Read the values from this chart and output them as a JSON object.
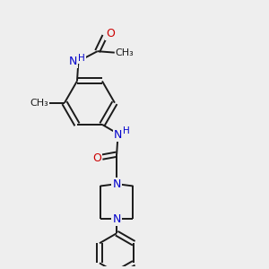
{
  "bg_color": "#eeeeee",
  "bond_color": "#1a1a1a",
  "N_color": "#0000cc",
  "O_color": "#cc0000",
  "C_color": "#1a1a1a",
  "bond_width": 1.4,
  "font_size": 9.0,
  "fig_size": [
    3.0,
    3.0
  ],
  "dpi": 100,
  "xlim": [
    0,
    10
  ],
  "ylim": [
    0,
    10
  ]
}
